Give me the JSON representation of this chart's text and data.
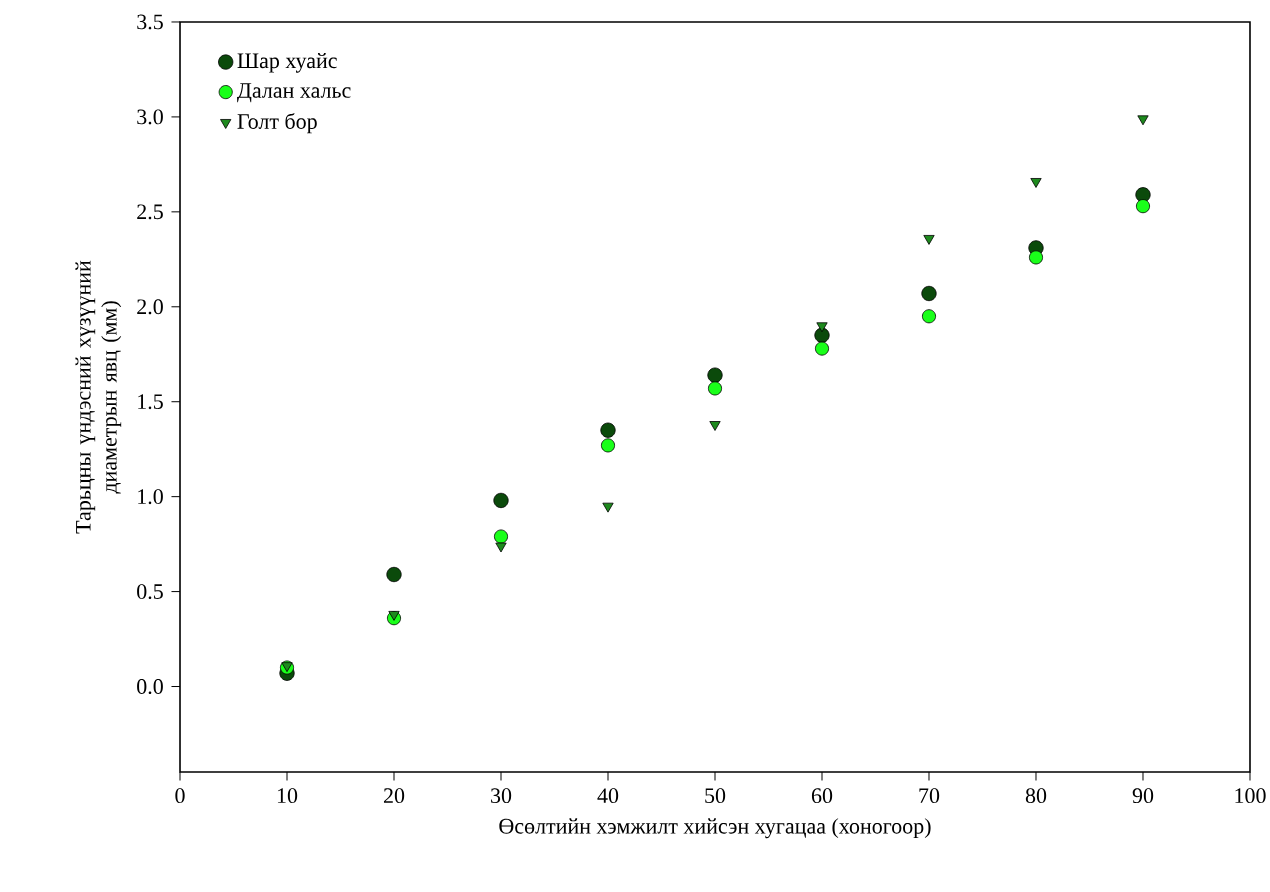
{
  "chart_data": {
    "type": "scatter",
    "xlabel": "Өсөлтийн хэмжилт хийсэн хугацаа (хоногоор)",
    "ylabel": "Тарьцны үндэсний хүзүүний диаметрын явц (мм)",
    "x": [
      10,
      20,
      30,
      40,
      50,
      60,
      70,
      80,
      90
    ],
    "series": [
      {
        "name": "Шар хуайс",
        "color": "#0b4a0b",
        "marker": "circle",
        "values": [
          0.07,
          0.59,
          0.98,
          1.35,
          1.64,
          1.85,
          2.07,
          2.31,
          2.59
        ]
      },
      {
        "name": "Далан хальс",
        "color": "#1aff1a",
        "marker": "circle",
        "values": [
          0.1,
          0.36,
          0.79,
          1.27,
          1.57,
          1.78,
          1.95,
          2.26,
          2.53
        ]
      },
      {
        "name": "Голт бор",
        "color": "#1e8a1e",
        "marker": "triangle",
        "values": [
          0.11,
          0.38,
          0.74,
          0.95,
          1.38,
          1.9,
          2.36,
          2.66,
          2.99
        ]
      }
    ],
    "xlim": [
      0,
      100
    ],
    "xticks": [
      0,
      10,
      20,
      30,
      40,
      50,
      60,
      70,
      80,
      90,
      100
    ],
    "ylim": [
      -0.45,
      3.5
    ],
    "yticks": [
      {
        "value": 0,
        "label": "0.0"
      },
      {
        "value": 0.5,
        "label": "0.5"
      },
      {
        "value": 1,
        "label": "1.0"
      },
      {
        "value": 1.5,
        "label": "1.5"
      },
      {
        "value": 2,
        "label": "2.0"
      },
      {
        "value": 2.5,
        "label": "2.5"
      },
      {
        "value": 3,
        "label": "3.0"
      },
      {
        "value": 3.5,
        "label": "3.5"
      }
    ],
    "grid": false,
    "legend": "top left"
  }
}
